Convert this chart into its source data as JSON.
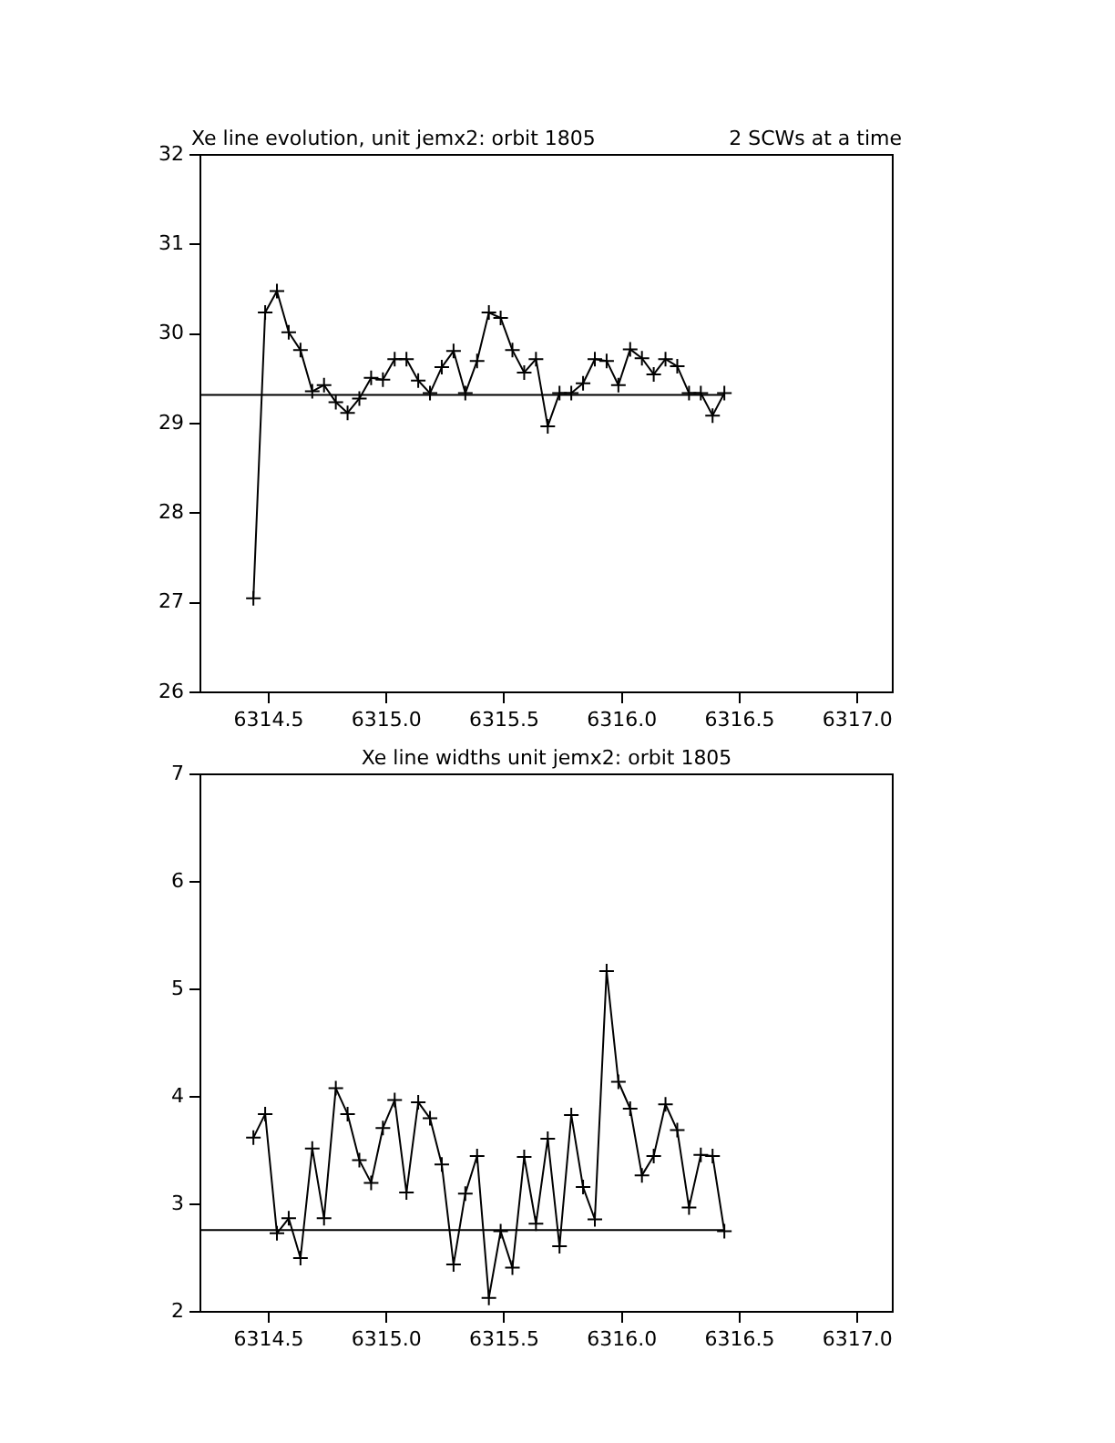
{
  "chart_data": [
    {
      "type": "line",
      "title": "Xe line evolution, unit jemx2: orbit 1805",
      "subtitle": "2 SCWs at a time",
      "marker": "cross",
      "line_style": "solid",
      "x": [
        6314.435,
        6314.485,
        6314.535,
        6314.585,
        6314.635,
        6314.685,
        6314.735,
        6314.785,
        6314.835,
        6314.885,
        6314.935,
        6314.985,
        6315.035,
        6315.085,
        6315.135,
        6315.185,
        6315.235,
        6315.285,
        6315.335,
        6315.385,
        6315.435,
        6315.485,
        6315.535,
        6315.585,
        6315.635,
        6315.685,
        6315.735,
        6315.785,
        6315.835,
        6315.885,
        6315.935,
        6315.985,
        6316.035,
        6316.085,
        6316.135,
        6316.185,
        6316.235,
        6316.285,
        6316.335,
        6316.385,
        6316.435
      ],
      "series": [
        {
          "color": "#000000",
          "values": [
            27.05,
            30.24,
            30.48,
            30.02,
            29.82,
            29.36,
            29.43,
            29.24,
            29.12,
            29.28,
            29.51,
            29.49,
            29.72,
            29.72,
            29.48,
            29.34,
            29.63,
            29.81,
            29.34,
            29.7,
            30.24,
            30.18,
            29.82,
            29.57,
            29.72,
            28.97,
            29.34,
            29.34,
            29.45,
            29.72,
            29.7,
            29.43,
            29.83,
            29.73,
            29.55,
            29.72,
            29.64,
            29.34,
            29.34,
            29.09,
            29.34
          ]
        }
      ],
      "ref_lines": [
        {
          "axis": "y",
          "value": 29.32,
          "color": "#000000"
        }
      ],
      "xlim": [
        6314.21,
        6317.15
      ],
      "ylim": [
        26,
        32
      ],
      "xticks": [
        {
          "value": 6314.5,
          "label": "6314.5"
        },
        {
          "value": 6315,
          "label": "6315.0"
        },
        {
          "value": 6315.5,
          "label": "6315.5"
        },
        {
          "value": 6316,
          "label": "6316.0"
        },
        {
          "value": 6316.5,
          "label": "6316.5"
        },
        {
          "value": 6317,
          "label": "6317.0"
        }
      ],
      "yticks": [
        26,
        27,
        28,
        29,
        30,
        31,
        32
      ]
    },
    {
      "type": "line",
      "title": "Xe line widths unit jemx2: orbit 1805",
      "marker": "cross",
      "line_style": "solid",
      "x": [
        6314.435,
        6314.485,
        6314.535,
        6314.585,
        6314.635,
        6314.685,
        6314.735,
        6314.785,
        6314.835,
        6314.885,
        6314.935,
        6314.985,
        6315.035,
        6315.085,
        6315.135,
        6315.185,
        6315.235,
        6315.285,
        6315.335,
        6315.385,
        6315.435,
        6315.485,
        6315.535,
        6315.585,
        6315.635,
        6315.685,
        6315.735,
        6315.785,
        6315.835,
        6315.885,
        6315.935,
        6315.985,
        6316.035,
        6316.085,
        6316.135,
        6316.185,
        6316.235,
        6316.285,
        6316.335,
        6316.385,
        6316.435
      ],
      "series": [
        {
          "color": "#000000",
          "values": [
            3.62,
            3.84,
            2.73,
            2.87,
            2.5,
            3.52,
            2.87,
            4.08,
            3.84,
            3.41,
            3.2,
            3.71,
            3.97,
            3.11,
            3.95,
            3.8,
            3.37,
            2.44,
            3.1,
            3.45,
            2.13,
            2.75,
            2.41,
            3.44,
            2.82,
            3.61,
            2.61,
            3.83,
            3.16,
            2.86,
            5.17,
            4.14,
            3.89,
            3.27,
            3.45,
            3.93,
            3.69,
            2.97,
            3.46,
            3.45,
            2.75
          ]
        }
      ],
      "ref_lines": [
        {
          "axis": "y",
          "value": 2.76,
          "color": "#000000"
        }
      ],
      "xlim": [
        6314.21,
        6317.15
      ],
      "ylim": [
        2,
        7
      ],
      "xticks": [
        {
          "value": 6314.5,
          "label": "6314.5"
        },
        {
          "value": 6315,
          "label": "6315.0"
        },
        {
          "value": 6315.5,
          "label": "6315.5"
        },
        {
          "value": 6316,
          "label": "6316.0"
        },
        {
          "value": 6316.5,
          "label": "6316.5"
        },
        {
          "value": 6317,
          "label": "6317.0"
        }
      ],
      "yticks": [
        2,
        3,
        4,
        5,
        6,
        7
      ]
    }
  ]
}
